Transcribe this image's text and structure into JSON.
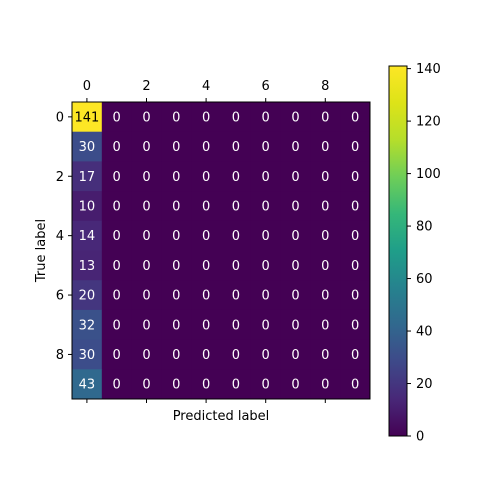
{
  "chart_data": {
    "type": "heatmap",
    "title": "",
    "xlabel": "Predicted label",
    "ylabel": "True label",
    "x_ticks": [
      0,
      2,
      4,
      6,
      8
    ],
    "y_ticks": [
      0,
      2,
      4,
      6,
      8
    ],
    "x_tick_position": "top",
    "colormap": "viridis",
    "colorbar": {
      "range": [
        0,
        141
      ],
      "ticks": [
        0,
        20,
        40,
        60,
        80,
        100,
        120,
        140
      ]
    },
    "values": [
      [
        141,
        0,
        0,
        0,
        0,
        0,
        0,
        0,
        0,
        0
      ],
      [
        30,
        0,
        0,
        0,
        0,
        0,
        0,
        0,
        0,
        0
      ],
      [
        17,
        0,
        0,
        0,
        0,
        0,
        0,
        0,
        0,
        0
      ],
      [
        10,
        0,
        0,
        0,
        0,
        0,
        0,
        0,
        0,
        0
      ],
      [
        14,
        0,
        0,
        0,
        0,
        0,
        0,
        0,
        0,
        0
      ],
      [
        13,
        0,
        0,
        0,
        0,
        0,
        0,
        0,
        0,
        0
      ],
      [
        20,
        0,
        0,
        0,
        0,
        0,
        0,
        0,
        0,
        0
      ],
      [
        32,
        0,
        0,
        0,
        0,
        0,
        0,
        0,
        0,
        0
      ],
      [
        30,
        0,
        0,
        0,
        0,
        0,
        0,
        0,
        0,
        0
      ],
      [
        43,
        0,
        0,
        0,
        0,
        0,
        0,
        0,
        0,
        0
      ]
    ]
  }
}
